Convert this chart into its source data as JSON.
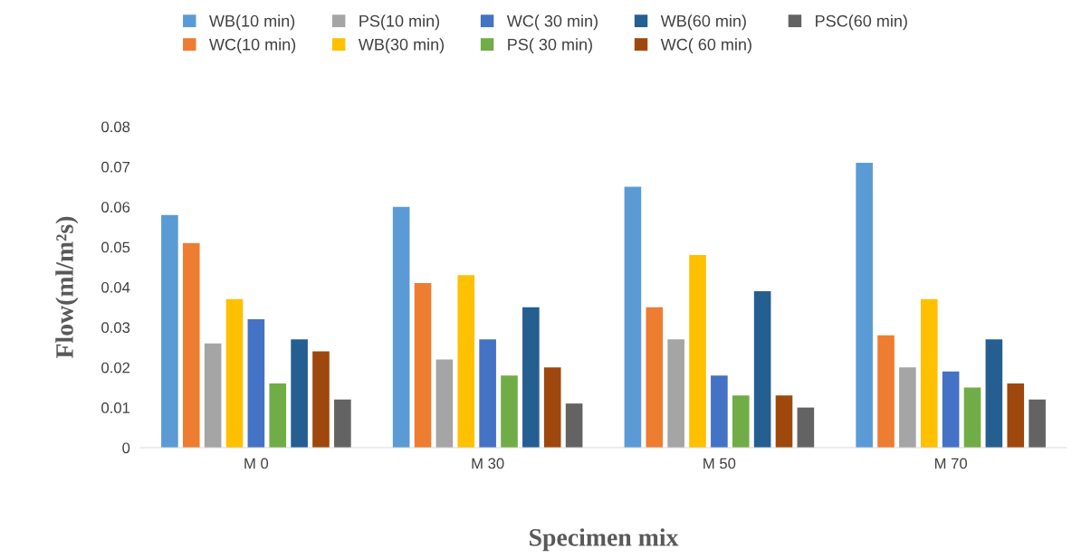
{
  "chart_data": {
    "type": "bar",
    "xlabel": "Specimen mix",
    "ylabel": "Flow(ml/m²s)",
    "categories": [
      "M 0",
      "M 30",
      "M 50",
      "M 70"
    ],
    "series": [
      {
        "name": "WB(10 min)",
        "color": "#5b9bd5",
        "values": [
          0.058,
          0.06,
          0.065,
          0.071
        ]
      },
      {
        "name": "WC(10 min)",
        "color": "#ed7d31",
        "values": [
          0.051,
          0.041,
          0.035,
          0.028
        ]
      },
      {
        "name": "PS(10 min)",
        "color": "#a5a5a5",
        "values": [
          0.026,
          0.022,
          0.027,
          0.02
        ]
      },
      {
        "name": "WB(30 min)",
        "color": "#ffc000",
        "values": [
          0.037,
          0.043,
          0.048,
          0.037
        ]
      },
      {
        "name": "WC( 30 min)",
        "color": "#4472c4",
        "values": [
          0.032,
          0.027,
          0.018,
          0.019
        ]
      },
      {
        "name": "PS( 30 min)",
        "color": "#70ad47",
        "values": [
          0.016,
          0.018,
          0.013,
          0.015
        ]
      },
      {
        "name": "WB(60 min)",
        "color": "#255e91",
        "values": [
          0.027,
          0.035,
          0.039,
          0.027
        ]
      },
      {
        "name": "WC( 60 min)",
        "color": "#9e480e",
        "values": [
          0.024,
          0.02,
          0.013,
          0.016
        ]
      },
      {
        "name": "PSC(60 min)",
        "color": "#636363",
        "values": [
          0.012,
          0.011,
          0.01,
          0.012
        ]
      }
    ],
    "ylim": [
      0,
      0.08
    ],
    "yticks": [
      0,
      0.01,
      0.02,
      0.03,
      0.04,
      0.05,
      0.06,
      0.07,
      0.08
    ],
    "grid": false,
    "legend": "top"
  }
}
